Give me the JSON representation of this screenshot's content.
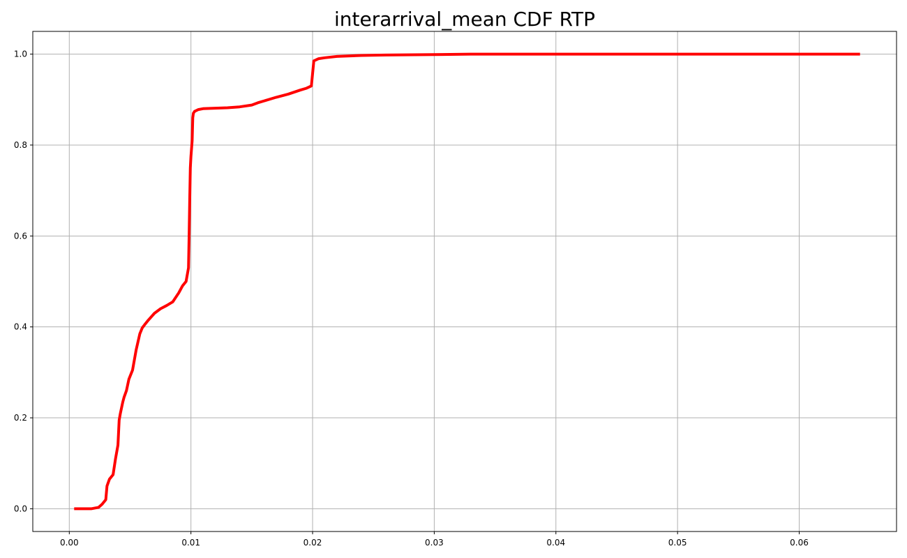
{
  "chart_data": {
    "type": "line",
    "title": "interarrival_mean CDF RTP",
    "xlabel": "",
    "ylabel": "",
    "xlim": [
      -0.003,
      0.068
    ],
    "ylim": [
      -0.05,
      1.05
    ],
    "xticks": [
      0.0,
      0.01,
      0.02,
      0.03,
      0.04,
      0.05,
      0.06
    ],
    "xtick_labels": [
      "0.00",
      "0.01",
      "0.02",
      "0.03",
      "0.04",
      "0.05",
      "0.06"
    ],
    "yticks": [
      0.0,
      0.2,
      0.4,
      0.6,
      0.8,
      1.0
    ],
    "ytick_labels": [
      "0.0",
      "0.2",
      "0.4",
      "0.6",
      "0.8",
      "1.0"
    ],
    "grid": true,
    "series": [
      {
        "color": "#ff0000",
        "x": [
          0.0004,
          0.0018,
          0.0024,
          0.0027,
          0.003,
          0.0031,
          0.0033,
          0.0036,
          0.0038,
          0.004,
          0.0041,
          0.0042,
          0.0044,
          0.0045,
          0.0047,
          0.0049,
          0.0052,
          0.0055,
          0.0058,
          0.006,
          0.0062,
          0.0065,
          0.007,
          0.0075,
          0.008,
          0.0085,
          0.009,
          0.0093,
          0.0096,
          0.0098,
          0.00985,
          0.0099,
          0.00995,
          0.01,
          0.0101,
          0.01015,
          0.0102,
          0.0103,
          0.0106,
          0.011,
          0.012,
          0.013,
          0.014,
          0.015,
          0.0155,
          0.016,
          0.017,
          0.018,
          0.019,
          0.0195,
          0.0199,
          0.0201,
          0.0205,
          0.021,
          0.022,
          0.024,
          0.026,
          0.03,
          0.033,
          0.04,
          0.05,
          0.06,
          0.065
        ],
        "y": [
          0.0,
          0.0,
          0.003,
          0.01,
          0.02,
          0.05,
          0.065,
          0.075,
          0.11,
          0.14,
          0.195,
          0.21,
          0.235,
          0.245,
          0.26,
          0.285,
          0.305,
          0.35,
          0.385,
          0.398,
          0.405,
          0.415,
          0.43,
          0.44,
          0.447,
          0.455,
          0.475,
          0.49,
          0.5,
          0.53,
          0.6,
          0.68,
          0.75,
          0.775,
          0.81,
          0.86,
          0.87,
          0.874,
          0.878,
          0.88,
          0.881,
          0.882,
          0.884,
          0.888,
          0.893,
          0.897,
          0.905,
          0.912,
          0.921,
          0.925,
          0.93,
          0.985,
          0.99,
          0.992,
          0.995,
          0.997,
          0.998,
          0.999,
          1.0,
          1.0,
          1.0,
          1.0,
          1.0
        ]
      }
    ]
  }
}
